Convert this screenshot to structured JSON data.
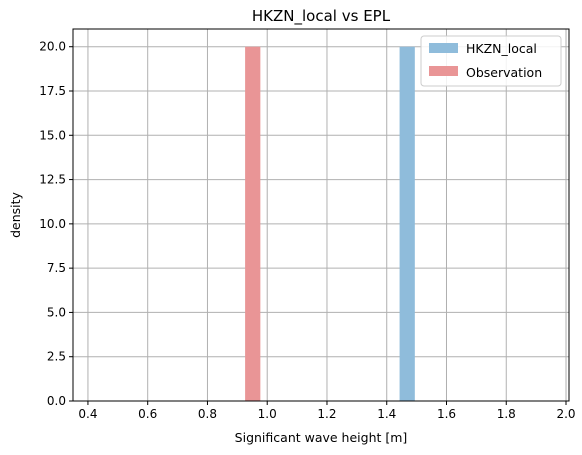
{
  "chart_data": {
    "type": "bar",
    "title": "HKZN_local vs EPL",
    "xlabel": "Significant wave height [m]",
    "ylabel": "density",
    "xlim": [
      0.35,
      2.01
    ],
    "ylim": [
      0,
      21
    ],
    "xticks": [
      "0.4",
      "0.6",
      "0.8",
      "1.0",
      "1.2",
      "1.4",
      "1.6",
      "1.8",
      "2.0"
    ],
    "yticks": [
      "0.0",
      "2.5",
      "5.0",
      "7.5",
      "10.0",
      "12.5",
      "15.0",
      "17.5",
      "20.0"
    ],
    "grid": true,
    "legend_position": "upper right",
    "series": [
      {
        "name": "HKZN_local",
        "color": "#8fbcdb",
        "bars": [
          {
            "x0": 1.443,
            "x1": 1.494,
            "value": 20.0
          }
        ]
      },
      {
        "name": "Observation",
        "color": "#e99596",
        "bars": [
          {
            "x0": 0.926,
            "x1": 0.977,
            "value": 20.0
          }
        ]
      }
    ]
  }
}
